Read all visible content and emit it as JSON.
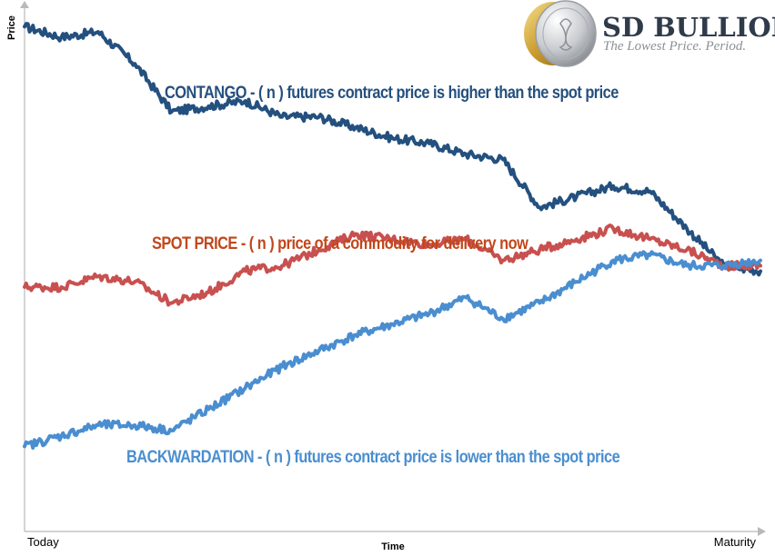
{
  "brand": {
    "name": "SD BULLION",
    "tagline": "The Lowest Price. Period.",
    "colors": {
      "dark": "#2f3b4a",
      "gray": "#8b8f94"
    }
  },
  "chart_data": {
    "type": "line",
    "title": "",
    "xlabel": "Time",
    "ylabel": "Price",
    "x_ticks": [
      "Today",
      "Maturity"
    ],
    "x": [
      0,
      5,
      10,
      15,
      20,
      25,
      30,
      35,
      40,
      45,
      50,
      55,
      60,
      65,
      70,
      75,
      80,
      85,
      90,
      95,
      100
    ],
    "xlim": [
      0,
      100
    ],
    "ylim": [
      0,
      100
    ],
    "grid": false,
    "series": [
      {
        "name": "CONTANGO",
        "color": "#24507f",
        "label": "CONTANGO - ( n ) futures contract price is higher than the spot price",
        "values": [
          95,
          93,
          94,
          88,
          79,
          80,
          81,
          78,
          78,
          76,
          74,
          73,
          71,
          70,
          61,
          63,
          65,
          64,
          57,
          50,
          49
        ]
      },
      {
        "name": "SPOT PRICE",
        "color": "#c8504f",
        "label": "SPOT PRICE - ( n ) price of a commodity for delivery now",
        "values": [
          46,
          46,
          48,
          47,
          43,
          45,
          49,
          50,
          53,
          56,
          55,
          54,
          55,
          51,
          53,
          55,
          57,
          55,
          53,
          50,
          50
        ]
      },
      {
        "name": "BACKWARDATION",
        "color": "#4a8ed0",
        "label": "BACKWARDATION - ( n ) futures contract price is lower than the spot price",
        "values": [
          16,
          18,
          20,
          20,
          19,
          23,
          27,
          31,
          34,
          37,
          39,
          41,
          44,
          40,
          43,
          47,
          51,
          52,
          50,
          50,
          51
        ]
      }
    ]
  }
}
